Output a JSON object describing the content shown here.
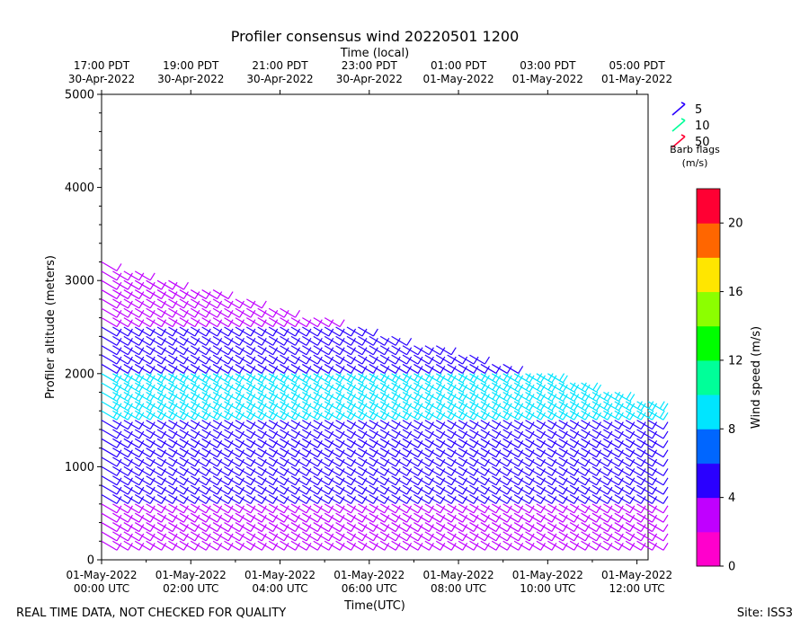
{
  "chart_data": {
    "type": "barb",
    "title": "Profiler consensus wind 20220501 1200",
    "top_axis_label": "Time (local)",
    "xlabel": "Time(UTC)",
    "ylabel": "Profiler altitude (meters)",
    "ylim": [
      0,
      5000
    ],
    "y_ticks": [
      "0",
      "1000",
      "2000",
      "3000",
      "4000",
      "5000"
    ],
    "x_ticks": [
      {
        "line1": "01-May-2022",
        "line2": "00:00 UTC"
      },
      {
        "line1": "01-May-2022",
        "line2": "02:00 UTC"
      },
      {
        "line1": "01-May-2022",
        "line2": "04:00 UTC"
      },
      {
        "line1": "01-May-2022",
        "line2": "06:00 UTC"
      },
      {
        "line1": "01-May-2022",
        "line2": "08:00 UTC"
      },
      {
        "line1": "01-May-2022",
        "line2": "10:00 UTC"
      },
      {
        "line1": "01-May-2022",
        "line2": "12:00 UTC"
      }
    ],
    "top_ticks": [
      {
        "line1": "17:00 PDT",
        "line2": "30-Apr-2022"
      },
      {
        "line1": "19:00 PDT",
        "line2": "30-Apr-2022"
      },
      {
        "line1": "21:00 PDT",
        "line2": "30-Apr-2022"
      },
      {
        "line1": "23:00 PDT",
        "line2": "30-Apr-2022"
      },
      {
        "line1": "01:00 PDT",
        "line2": "01-May-2022"
      },
      {
        "line1": "03:00 PDT",
        "line2": "01-May-2022"
      },
      {
        "line1": "05:00 PDT",
        "line2": "01-May-2022"
      }
    ],
    "legend": {
      "entries": [
        "5",
        "10",
        "50"
      ],
      "title_line1": "Barb flags",
      "title_line2": "(m/s)",
      "placement": "top-right, outside plot"
    },
    "colorbar": {
      "label": "Wind speed (m/s)",
      "ticks": [
        "0",
        "4",
        "8",
        "12",
        "16",
        "20"
      ],
      "range": [
        0,
        22
      ],
      "colors": [
        "#ff00cc",
        "#c000ff",
        "#2a00ff",
        "#0066ff",
        "#00e5ff",
        "#00ff99",
        "#00ff00",
        "#8cff00",
        "#ffe600",
        "#ff6600",
        "#ff0033"
      ]
    },
    "time_range_hours": [
      0,
      12.25
    ],
    "hours": [
      0,
      0.25,
      0.5,
      0.75,
      1,
      1.25,
      1.5,
      1.75,
      2,
      2.25,
      2.5,
      2.75,
      3,
      3.25,
      3.5,
      3.75,
      4,
      4.25,
      4.5,
      4.75,
      5,
      5.25,
      5.5,
      5.75,
      6,
      6.25,
      6.5,
      6.75,
      7,
      7.25,
      7.5,
      7.75,
      8,
      8.25,
      8.5,
      8.75,
      9,
      9.25,
      9.5,
      9.75,
      10,
      10.25,
      10.5,
      10.75,
      11,
      11.25,
      11.5,
      11.75,
      12,
      12.25
    ],
    "wind_speed_profile": [
      {
        "max_alt": 600,
        "speed": 2
      },
      {
        "max_alt": 1500,
        "speed": 5
      },
      {
        "max_alt": 2000,
        "speed": 9
      },
      {
        "max_alt": 2500,
        "speed": 5
      },
      {
        "max_alt": 3200,
        "speed": 2
      }
    ]
  },
  "footer": {
    "left": "REAL TIME DATA, NOT CHECKED FOR QUALITY",
    "right": "Site: ISS3"
  }
}
